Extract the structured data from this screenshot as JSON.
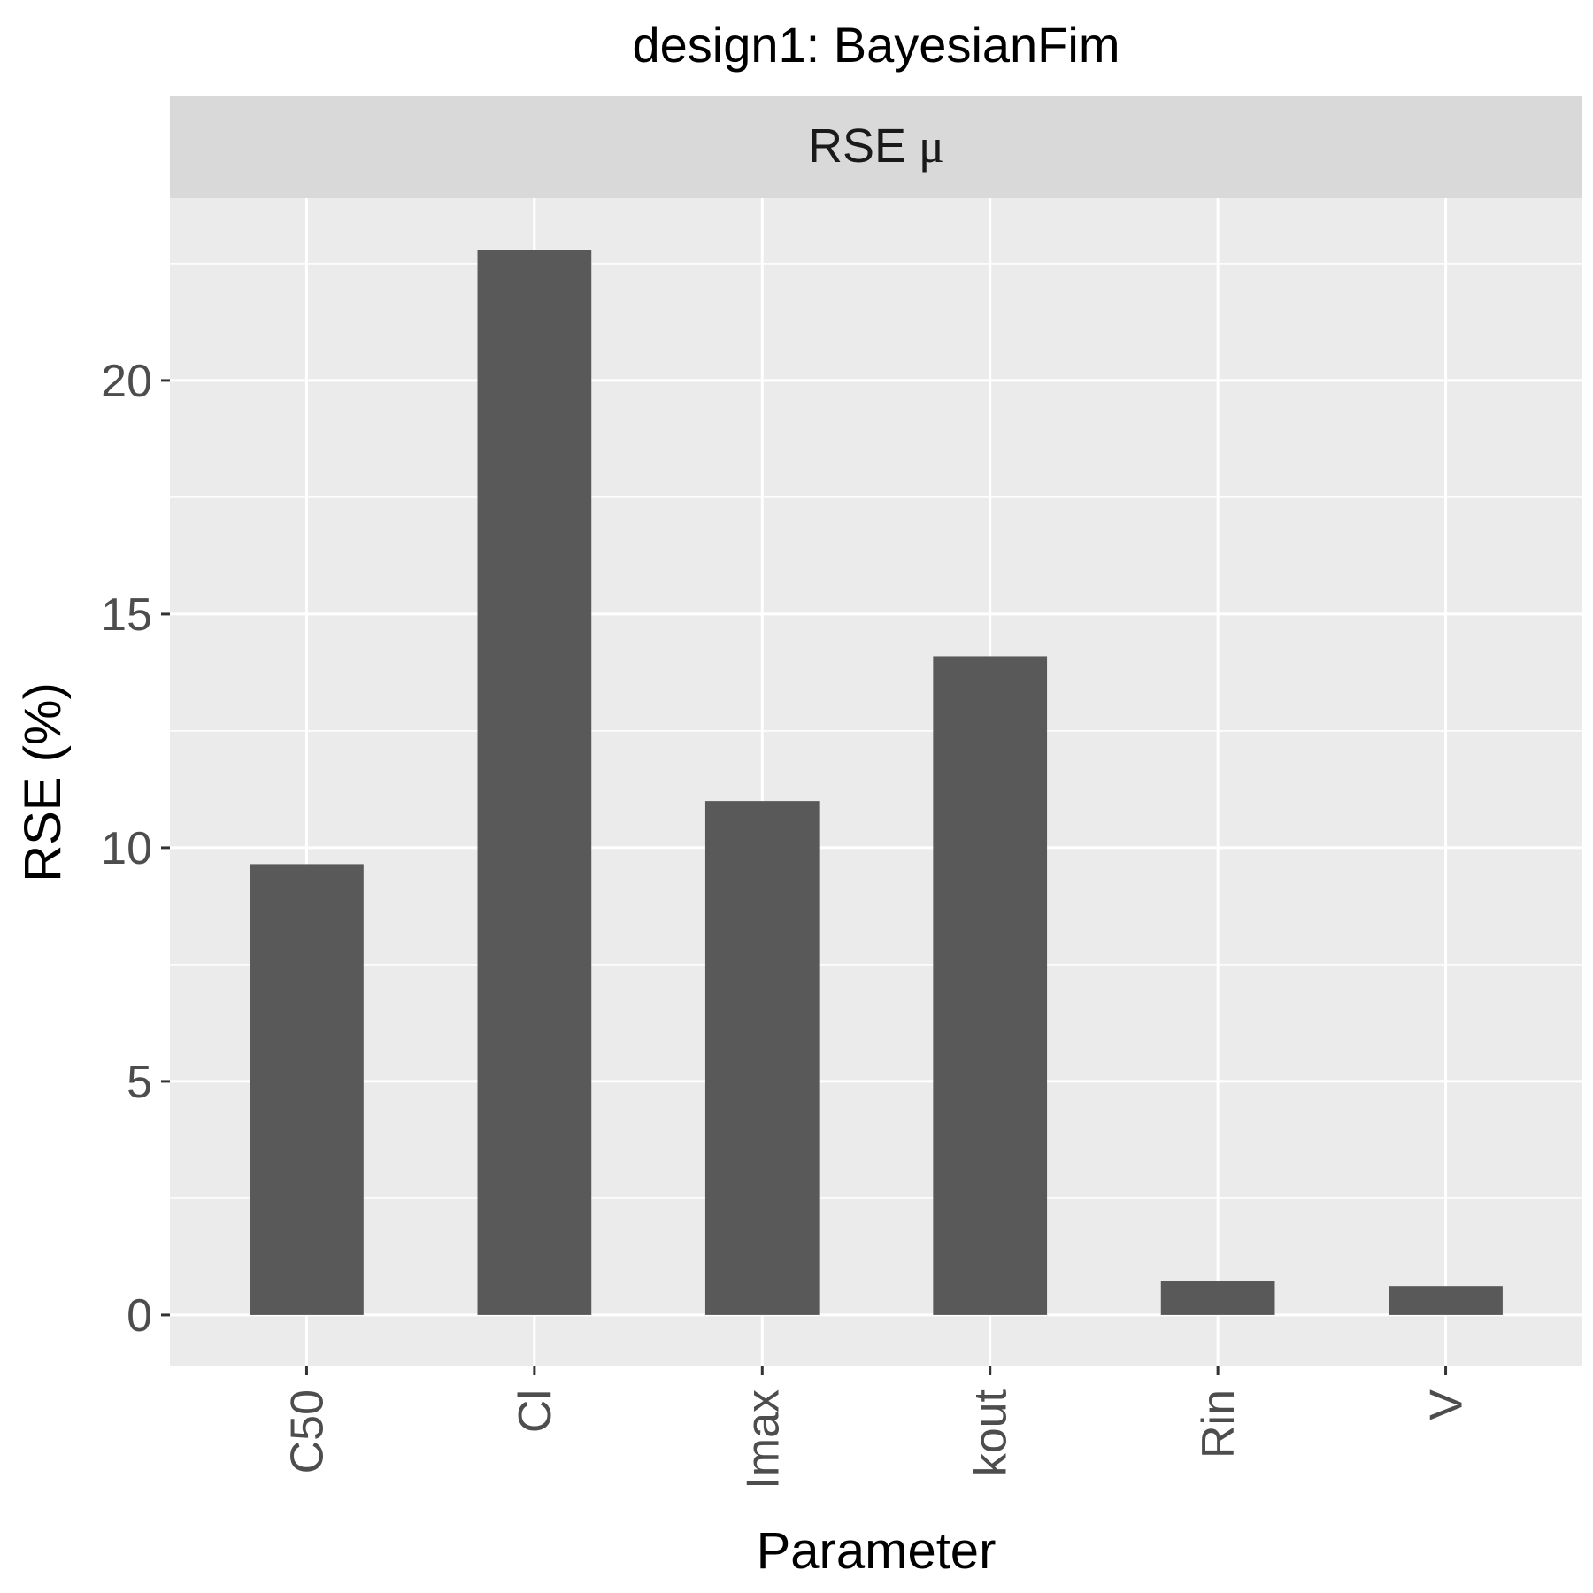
{
  "chart_data": {
    "type": "bar",
    "title": "design1: BayesianFim",
    "facet_label": "RSE",
    "facet_symbol": "μ",
    "xlabel": "Parameter",
    "ylabel": "RSE (%)",
    "categories": [
      "C50",
      "Cl",
      "Imax",
      "kout",
      "Rin",
      "V"
    ],
    "values": [
      9.65,
      22.8,
      11.0,
      14.1,
      0.72,
      0.62
    ],
    "ylim": [
      -1.1,
      23.9
    ],
    "yticks": [
      0,
      5,
      10,
      15,
      20
    ],
    "ytick_labels": [
      "0",
      "5",
      "10",
      "15",
      "20"
    ],
    "grid": true,
    "legend": "none",
    "colors": {
      "bar": "#595959",
      "panel": "#ebebeb",
      "strip": "#d9d9d9",
      "grid": "#ffffff",
      "tick": "#333333"
    }
  }
}
